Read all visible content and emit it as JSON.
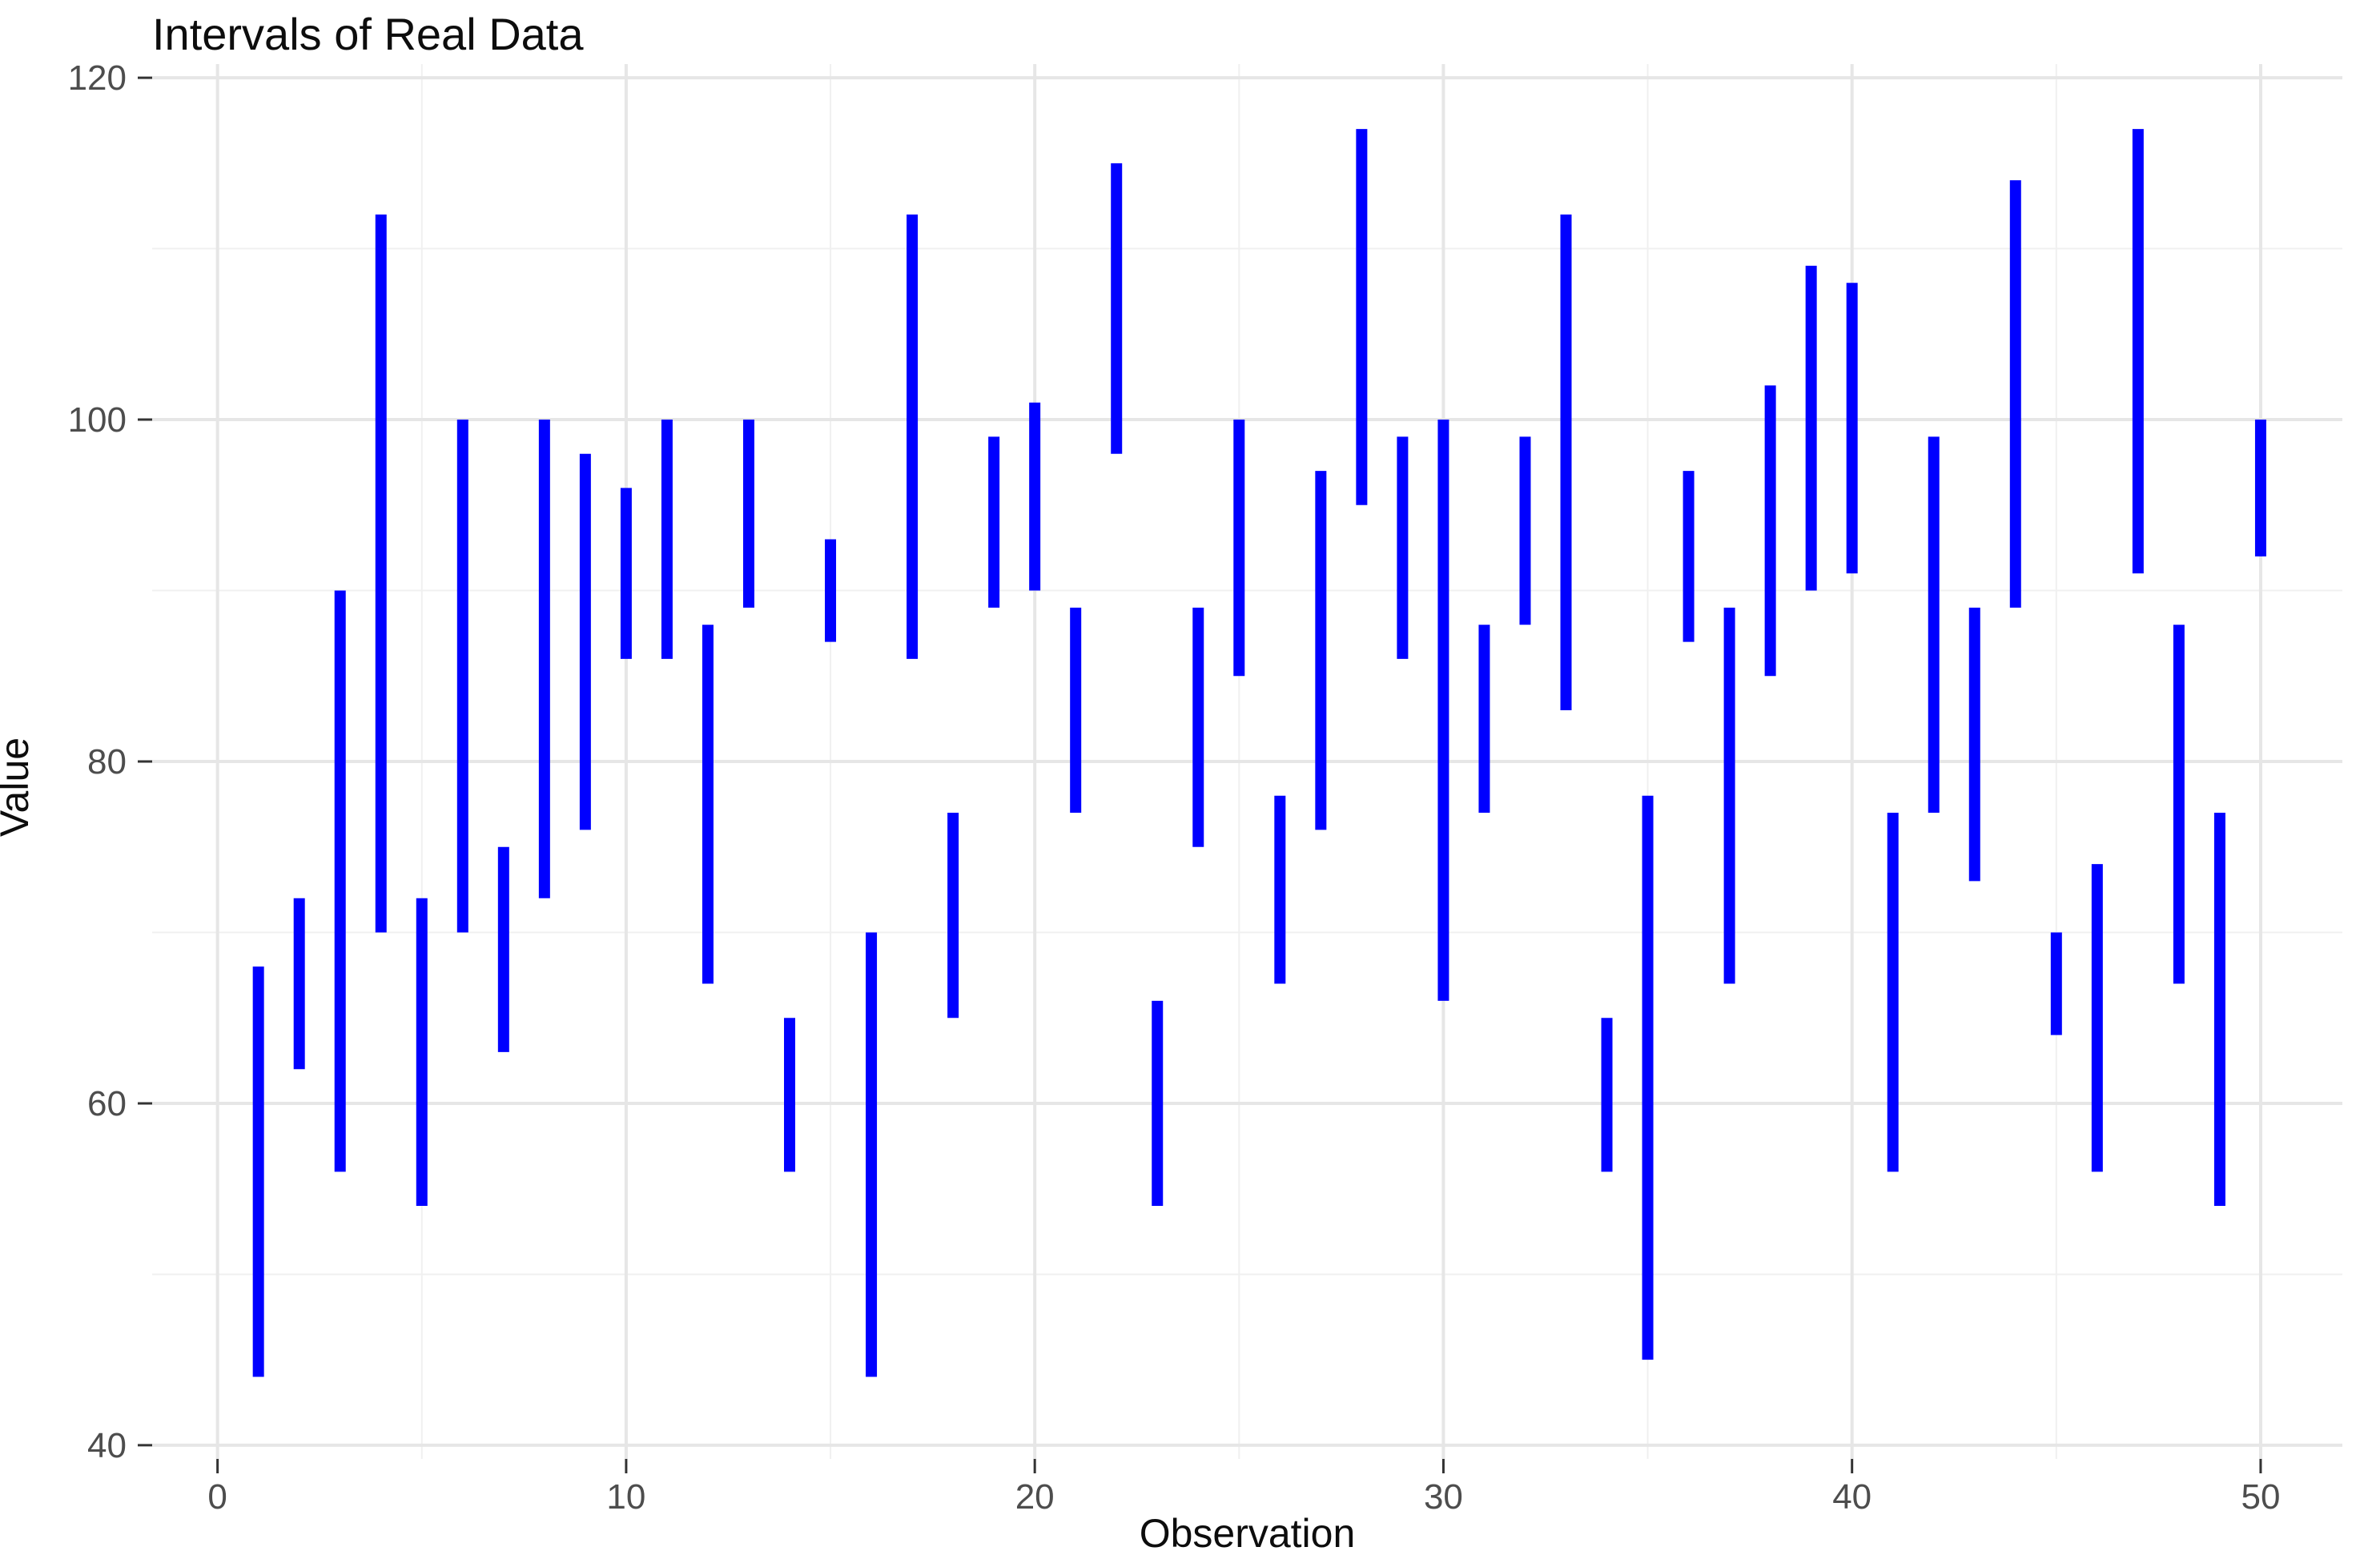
{
  "title": "Intervals of Real Data",
  "chart_data": {
    "type": "interval-range",
    "title": "Intervals of Real Data",
    "xlabel": "Observation",
    "ylabel": "Value",
    "x": [
      1,
      2,
      3,
      4,
      5,
      6,
      7,
      8,
      9,
      10,
      11,
      12,
      13,
      14,
      15,
      16,
      17,
      18,
      19,
      20,
      21,
      22,
      23,
      24,
      25,
      26,
      27,
      28,
      29,
      30,
      31,
      32,
      33,
      34,
      35,
      36,
      37,
      38,
      39,
      40,
      41,
      42,
      43,
      44,
      45,
      46,
      47,
      48,
      49,
      50
    ],
    "ymin": [
      44,
      62,
      56,
      70,
      54,
      70,
      63,
      72,
      76,
      86,
      86,
      67,
      89,
      56,
      87,
      44,
      86,
      65,
      89,
      90,
      77,
      98,
      54,
      75,
      85,
      67,
      76,
      95,
      86,
      66,
      77,
      88,
      83,
      56,
      45,
      87,
      67,
      85,
      90,
      91,
      56,
      77,
      73,
      89,
      64,
      56,
      91,
      67,
      54,
      92
    ],
    "ymax": [
      68,
      72,
      90,
      112,
      72,
      100,
      75,
      100,
      98,
      96,
      100,
      88,
      100,
      65,
      93,
      70,
      112,
      77,
      99,
      101,
      89,
      115,
      66,
      89,
      100,
      78,
      97,
      117,
      99,
      100,
      88,
      99,
      112,
      65,
      78,
      97,
      89,
      102,
      109,
      108,
      77,
      99,
      89,
      114,
      70,
      74,
      117,
      88,
      77,
      100
    ],
    "xticks": [
      0,
      10,
      20,
      30,
      40,
      50
    ],
    "yticks": [
      40,
      60,
      80,
      100,
      120
    ],
    "xminor": [
      5,
      15,
      25,
      35,
      45
    ],
    "yminor": [
      50,
      70,
      90,
      110
    ],
    "xlim": [
      -1.6,
      52
    ],
    "ylim": [
      39.2,
      120.8
    ],
    "grid": "major+minor",
    "legend": "none",
    "bar_color": "#0000FF",
    "background_color": "#FFFFFF",
    "major_grid_color": "#E6E6E6",
    "minor_grid_color": "#F0F0F0",
    "tick_mark_color": "#333333",
    "tick_label_color": "#4D4D4D",
    "title_color": "#0D0D0D"
  }
}
